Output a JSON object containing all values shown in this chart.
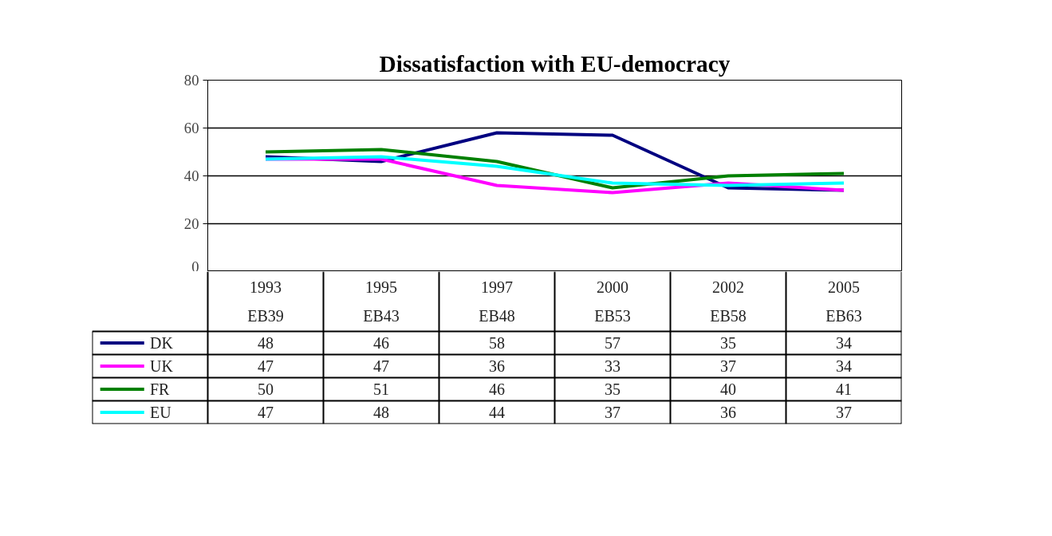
{
  "chart_data": {
    "type": "line",
    "title": "Dissatisfaction with EU-democracy",
    "categories": [
      "1993\nEB39",
      "1995\nEB43",
      "1997\nEB48",
      "2000\nEB53",
      "2002\nEB58",
      "2005\nEB63"
    ],
    "series": [
      {
        "name": "DK",
        "color": "#000080",
        "values": [
          48,
          46,
          58,
          57,
          35,
          34
        ]
      },
      {
        "name": "UK",
        "color": "#ff00ff",
        "values": [
          47,
          47,
          36,
          33,
          37,
          34
        ]
      },
      {
        "name": "FR",
        "color": "#008000",
        "values": [
          50,
          51,
          46,
          35,
          40,
          41
        ]
      },
      {
        "name": "EU",
        "color": "#00ffff",
        "values": [
          47,
          48,
          44,
          37,
          36,
          37
        ]
      }
    ],
    "ylim": [
      0,
      80
    ],
    "yticks": [
      0,
      20,
      40,
      60,
      80
    ],
    "grid": "y",
    "data_labels": true,
    "marker": "none",
    "legend": "bottom left",
    "line_style": "solid"
  }
}
